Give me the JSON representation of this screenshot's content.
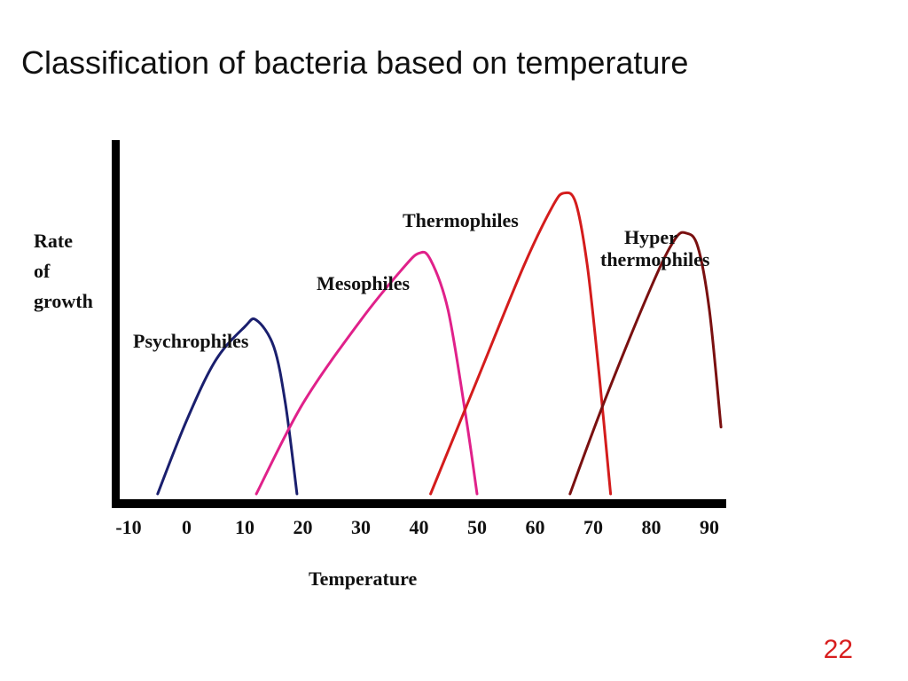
{
  "slide": {
    "title": "Classification of bacteria based on temperature",
    "page_number": "22"
  },
  "colors": {
    "axis": "#000000",
    "page_number": "#d81e1e"
  },
  "chart_data": {
    "type": "line",
    "title": "",
    "xlabel": "Temperature",
    "ylabel_lines": [
      "Rate",
      "of",
      "growth"
    ],
    "ylabel": "Rate of growth",
    "xlim": [
      -10,
      90
    ],
    "ylim": [
      0,
      1
    ],
    "x_ticks": [
      -10,
      0,
      10,
      20,
      30,
      40,
      50,
      60,
      70,
      80,
      90
    ],
    "grid": false,
    "legend": "none (curves labelled directly)",
    "series": [
      {
        "name": "Psychrophiles",
        "color": "#1a1f6e",
        "points": [
          [
            -5,
            0
          ],
          [
            0,
            0.22
          ],
          [
            5,
            0.4
          ],
          [
            10,
            0.5
          ],
          [
            12,
            0.52
          ],
          [
            15,
            0.44
          ],
          [
            17,
            0.27
          ],
          [
            19,
            0
          ]
        ]
      },
      {
        "name": "Mesophiles",
        "color": "#e0218a",
        "points": [
          [
            12,
            0
          ],
          [
            20,
            0.27
          ],
          [
            30,
            0.52
          ],
          [
            37,
            0.67
          ],
          [
            40,
            0.72
          ],
          [
            42,
            0.7
          ],
          [
            45,
            0.55
          ],
          [
            48,
            0.24
          ],
          [
            50,
            0
          ]
        ]
      },
      {
        "name": "Thermophiles",
        "color": "#d41c1c",
        "points": [
          [
            42,
            0
          ],
          [
            50,
            0.34
          ],
          [
            58,
            0.68
          ],
          [
            63,
            0.86
          ],
          [
            65,
            0.9
          ],
          [
            67,
            0.87
          ],
          [
            69,
            0.68
          ],
          [
            71,
            0.36
          ],
          [
            73,
            0
          ]
        ]
      },
      {
        "name_lines": [
          "Hyper",
          "thermophiles"
        ],
        "name": "Hyper thermophiles",
        "color": "#7a1010",
        "points": [
          [
            66,
            0
          ],
          [
            72,
            0.28
          ],
          [
            80,
            0.62
          ],
          [
            84,
            0.76
          ],
          [
            86,
            0.78
          ],
          [
            88,
            0.74
          ],
          [
            90,
            0.55
          ],
          [
            92,
            0.2
          ]
        ]
      }
    ]
  }
}
